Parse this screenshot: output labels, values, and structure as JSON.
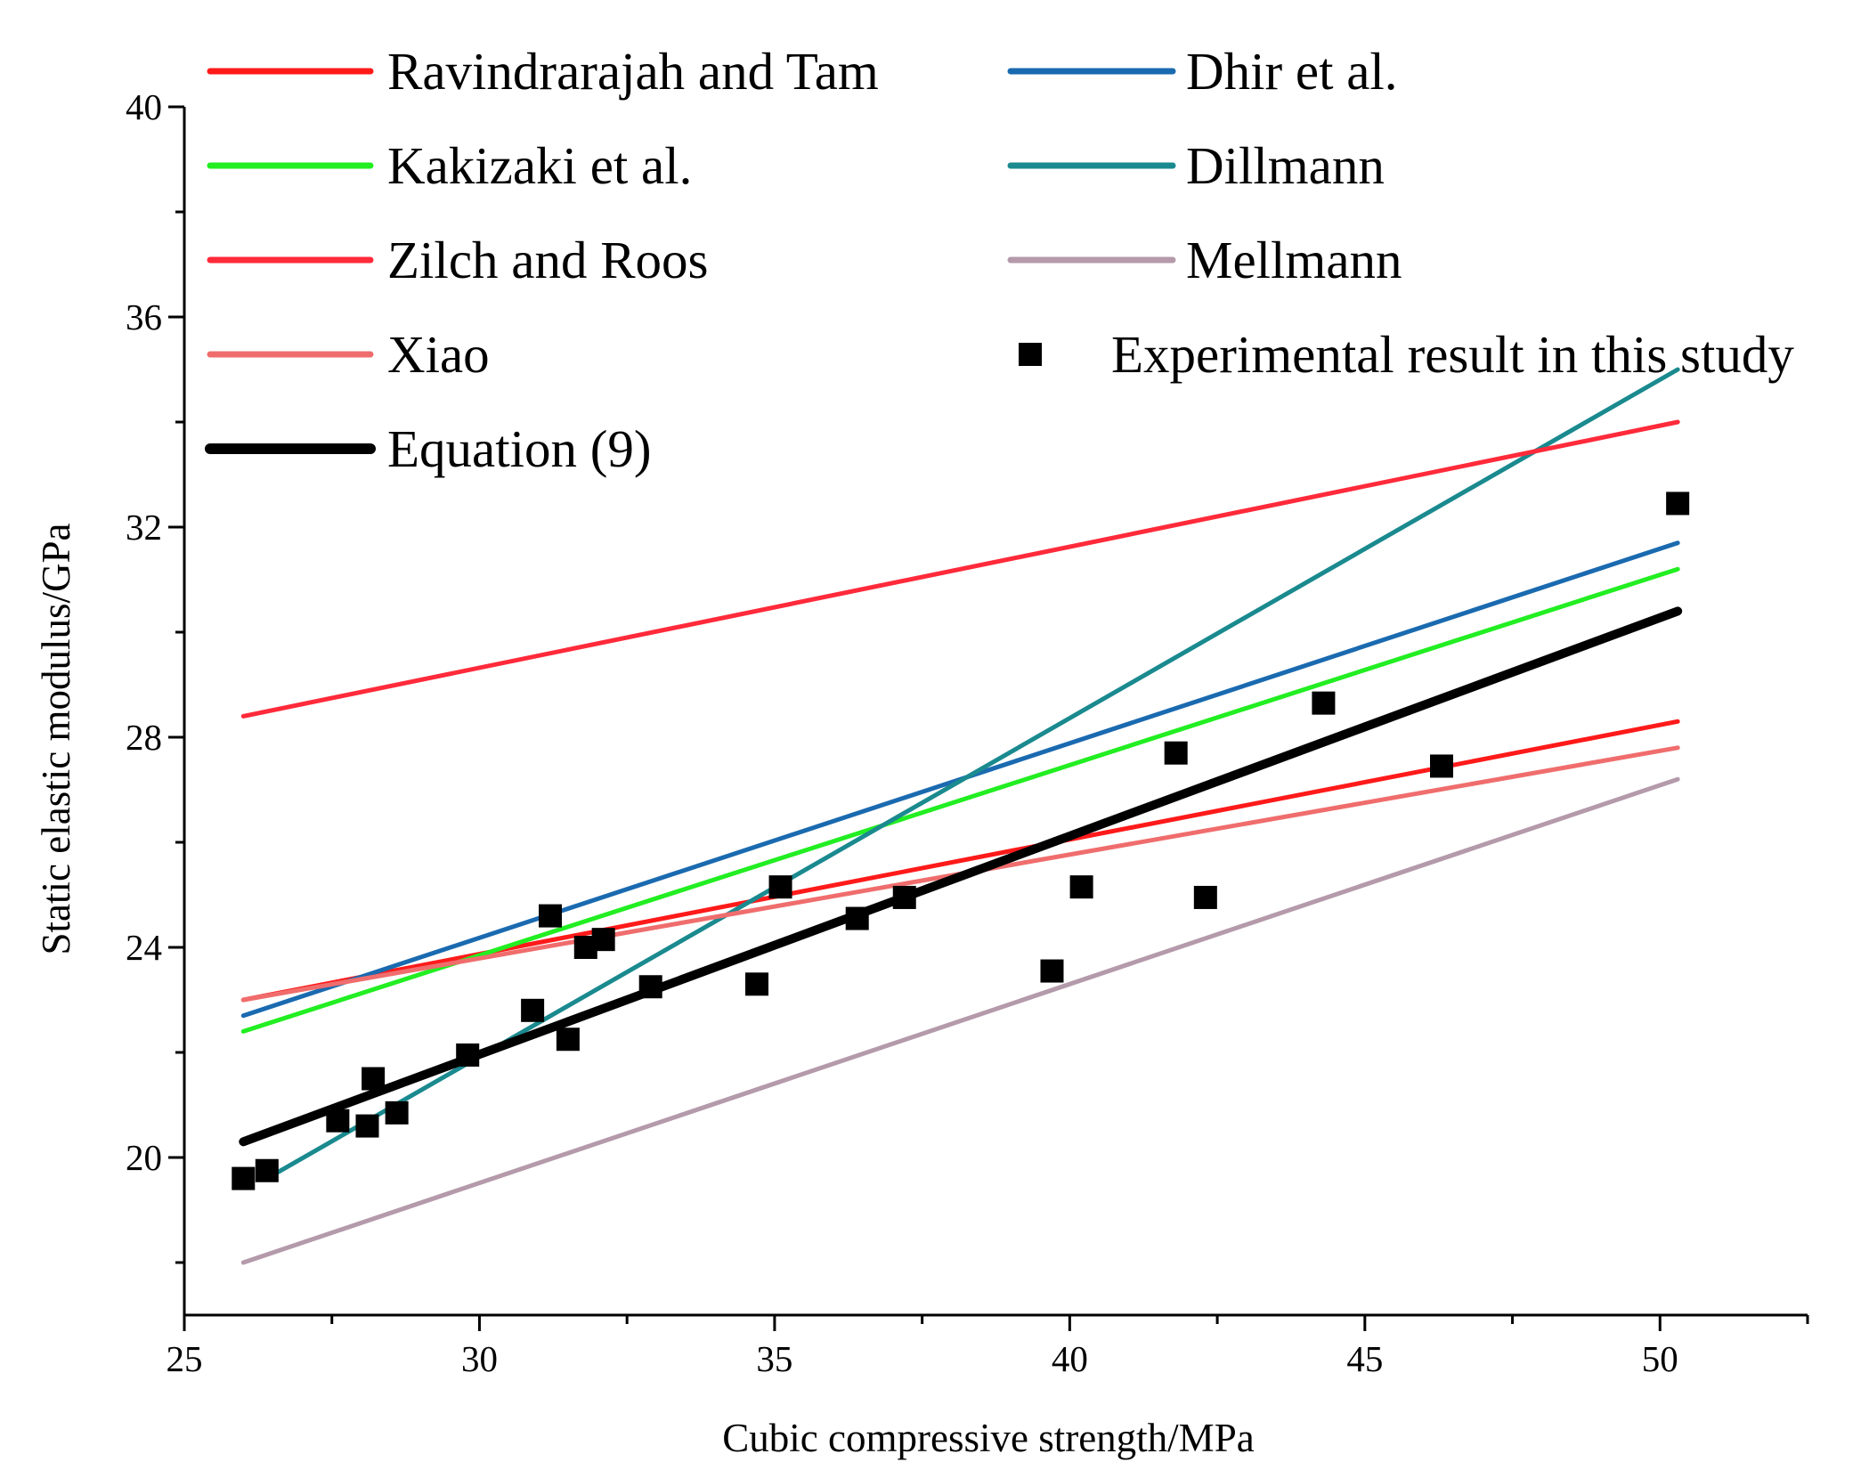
{
  "chart_data": {
    "type": "line",
    "title": "",
    "xlabel": "Cubic compressive strength/MPa",
    "ylabel": "Static elastic modulus/GPa",
    "xlim": [
      25,
      52.5
    ],
    "ylim": [
      17,
      40
    ],
    "x_ticks": [
      25,
      30,
      35,
      40,
      45,
      50
    ],
    "y_ticks": [
      20,
      24,
      28,
      32,
      36,
      40
    ],
    "grid": false,
    "legend_position": "top",
    "series": [
      {
        "name": "Ravindrarajah and Tam",
        "kind": "line",
        "color": "#ff1a1a",
        "width": 5,
        "x": [
          26,
          50.3
        ],
        "y": [
          23.0,
          28.3
        ]
      },
      {
        "name": "Dhir et al.",
        "kind": "line",
        "color": "#1a6ab0",
        "width": 5,
        "x": [
          26,
          50.3
        ],
        "y": [
          22.7,
          31.7
        ]
      },
      {
        "name": "Kakizaki et al.",
        "kind": "line",
        "color": "#22ee22",
        "width": 5,
        "x": [
          26,
          50.3
        ],
        "y": [
          22.4,
          31.2
        ]
      },
      {
        "name": "Dillmann",
        "kind": "line",
        "color": "#1a8a8f",
        "width": 5,
        "x": [
          26.4,
          50.3
        ],
        "y": [
          19.6,
          35.0
        ]
      },
      {
        "name": "Zilch and Roos",
        "kind": "line",
        "color": "#ff2a3a",
        "width": 5,
        "x": [
          26,
          50.3
        ],
        "y": [
          28.4,
          34.0
        ]
      },
      {
        "name": "Mellmann",
        "kind": "line",
        "color": "#b49aaa",
        "width": 5,
        "x": [
          26,
          50.3
        ],
        "y": [
          18.0,
          27.2
        ]
      },
      {
        "name": "Xiao",
        "kind": "line",
        "color": "#f06d6d",
        "width": 5,
        "x": [
          26,
          50.3
        ],
        "y": [
          23.0,
          27.8
        ]
      },
      {
        "name": "Experimental result in this study",
        "kind": "scatter",
        "color": "#000000",
        "x": [
          26.0,
          26.4,
          27.6,
          28.1,
          28.2,
          28.6,
          29.8,
          30.9,
          31.2,
          31.5,
          31.8,
          32.1,
          32.9,
          34.7,
          35.1,
          36.4,
          37.2,
          39.7,
          40.2,
          41.8,
          42.3,
          44.3,
          46.3,
          50.3
        ],
        "y": [
          19.6,
          19.75,
          20.7,
          20.6,
          21.5,
          20.85,
          21.95,
          22.8,
          24.6,
          22.25,
          24.0,
          24.15,
          23.25,
          23.3,
          25.15,
          24.55,
          24.95,
          23.55,
          25.15,
          27.7,
          24.95,
          28.65,
          27.45,
          32.45
        ]
      },
      {
        "name": "Equation (9)",
        "kind": "line",
        "color": "#000000",
        "width": 10,
        "x": [
          26,
          50.3
        ],
        "y": [
          20.3,
          30.4
        ]
      }
    ]
  }
}
